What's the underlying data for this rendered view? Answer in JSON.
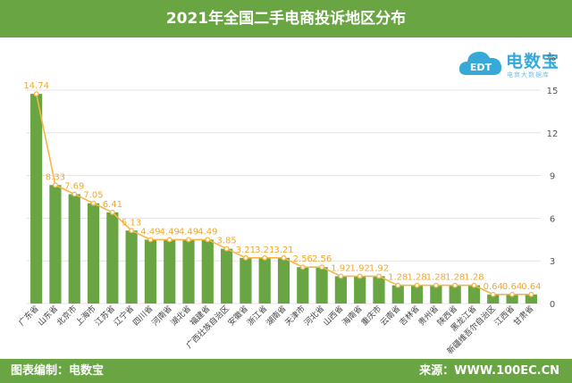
{
  "header": {
    "title": "2021年全国二手电商投诉地区分布"
  },
  "footer": {
    "left": "图表编制：电数宝",
    "right": "来源：WWW.100EC.CN"
  },
  "logo": {
    "brand": "电数宝",
    "sub": "电商大数据库"
  },
  "colors": {
    "bar": "#6aa543",
    "line": "#f5b646",
    "label": "#f0a830",
    "grid": "#e3e3e3"
  },
  "chart_data": {
    "type": "bar",
    "unit": "%",
    "categories": [
      "广东省",
      "山东省",
      "北京市",
      "上海市",
      "江苏省",
      "辽宁省",
      "四川省",
      "河南省",
      "湖北省",
      "福建省",
      "广西壮族自治区",
      "安徽省",
      "浙江省",
      "湖南省",
      "天津市",
      "河北省",
      "山西省",
      "海南省",
      "重庆市",
      "云南省",
      "吉林省",
      "贵州省",
      "陕西省",
      "黑龙江省",
      "新疆维吾尔自治区",
      "江西省",
      "甘肃省"
    ],
    "values": [
      14.74,
      8.33,
      7.69,
      7.05,
      6.41,
      5.13,
      4.49,
      4.49,
      4.49,
      4.49,
      3.85,
      3.21,
      3.21,
      3.21,
      2.56,
      2.56,
      1.92,
      1.92,
      1.92,
      1.28,
      1.28,
      1.28,
      1.28,
      1.28,
      0.64,
      0.64,
      0.64
    ],
    "data_labels": [
      "14.74",
      "8.33",
      "7.69",
      "7.05",
      "6.41",
      "5.13",
      "4.49",
      "4.49",
      "4.49",
      "4.49",
      "3.85",
      "3.21",
      "3.21",
      "3.21",
      "2.56",
      "2.56",
      "1.92",
      "1.92",
      "1.92",
      "1.28",
      "1.28",
      "1.28",
      "1.28",
      "1.28",
      "0.64",
      "0.64",
      "0.64"
    ],
    "y_ticks": [
      "0",
      "3",
      "6",
      "9",
      "12",
      "15"
    ],
    "ylim": [
      0,
      15
    ],
    "grid": true,
    "series": [
      {
        "type": "bar",
        "values": [
          14.74,
          8.33,
          7.69,
          7.05,
          6.41,
          5.13,
          4.49,
          4.49,
          4.49,
          4.49,
          3.85,
          3.21,
          3.21,
          3.21,
          2.56,
          2.56,
          1.92,
          1.92,
          1.92,
          1.28,
          1.28,
          1.28,
          1.28,
          1.28,
          0.64,
          0.64,
          0.64
        ]
      },
      {
        "type": "line",
        "values": [
          14.74,
          8.33,
          7.69,
          7.05,
          6.41,
          5.13,
          4.49,
          4.49,
          4.49,
          4.49,
          3.85,
          3.21,
          3.21,
          3.21,
          2.56,
          2.56,
          1.92,
          1.92,
          1.92,
          1.28,
          1.28,
          1.28,
          1.28,
          1.28,
          0.64,
          0.64,
          0.64
        ]
      }
    ]
  }
}
